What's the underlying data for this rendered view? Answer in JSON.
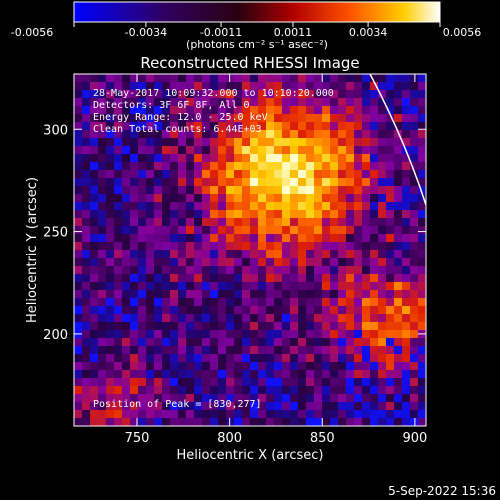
{
  "chart_data": {
    "type": "heatmap",
    "title": "Reconstructed RHESSI Image",
    "xlabel": "Heliocentric X (arcsec)",
    "ylabel": "Heliocentric Y (arcsec)",
    "xlim": [
      716,
      906
    ],
    "ylim": [
      155,
      327
    ],
    "xticks": [
      750,
      800,
      850,
      900
    ],
    "yticks": [
      200,
      250,
      300
    ],
    "colorbar": {
      "label": "(photons cm⁻² s⁻¹ asec⁻²)",
      "range": [
        -0.0056,
        0.0056
      ],
      "ticks": [
        "-0.0056",
        "-0.0034",
        "-0.0011",
        "0.0011",
        "0.0034",
        "0.0056"
      ]
    },
    "annotations": [
      "28-May-2017 10:09:32.000 to 10:10:20.000",
      "Detectors: 3F 6F 8F, All 0",
      "Energy Range: 12.0 - 25.0 keV",
      "Clean    Total counts: 6.44E+03"
    ],
    "peak_label": "Position of Peak = [830,277]",
    "peak": [
      830,
      277
    ],
    "footer_timestamp": "5-Sep-2022 15:36",
    "colormap": [
      "#1010ff",
      "#280040",
      "#8000a0",
      "#e02000",
      "#ff7000",
      "#ffcc00",
      "#ffffd0"
    ]
  }
}
